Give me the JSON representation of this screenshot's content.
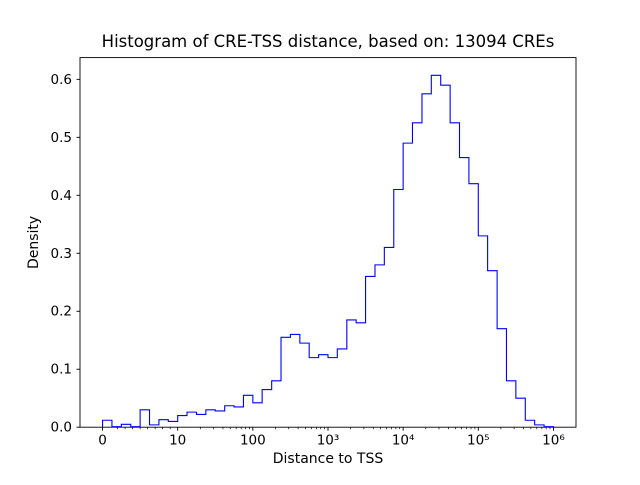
{
  "chart_data": {
    "type": "bar",
    "subtype": "step-histogram",
    "title": "Histogram of CRE-TSS distance, based on: 13094 CREs",
    "xlabel": "Distance to TSS",
    "ylabel": "Density",
    "x_scale": "symlog (linear from 0 to 10, logarithmic from 10 to 1e6)",
    "xlim": [
      0,
      1000000
    ],
    "ylim": [
      0,
      0.6375
    ],
    "grid": false,
    "legend": "none",
    "line_color": "#0000ff",
    "x_tick_values": [
      0,
      10,
      100,
      1000,
      10000,
      100000,
      1000000
    ],
    "x_tick_labels": [
      "0",
      "10",
      "100",
      "10³",
      "10⁴",
      "10⁵",
      "10⁶"
    ],
    "y_tick_values": [
      0.0,
      0.1,
      0.2,
      0.3,
      0.4,
      0.5,
      0.6
    ],
    "y_tick_labels": [
      "0.0",
      "0.1",
      "0.2",
      "0.3",
      "0.4",
      "0.5",
      "0.6"
    ],
    "n_cres": 13094,
    "bin_edges": [
      0,
      1.25,
      2.5,
      3.75,
      5,
      6.25,
      7.5,
      8.75,
      10,
      13.3,
      17.8,
      23.7,
      31.6,
      42.2,
      56.2,
      75,
      100,
      133,
      178,
      237,
      316,
      422,
      562,
      750,
      1000,
      1330,
      1780,
      2370,
      3160,
      4220,
      5620,
      7500,
      10000,
      13300,
      17800,
      23700,
      31600,
      42200,
      56200,
      75000,
      100000,
      133000,
      178000,
      237000,
      316000,
      422000,
      562000,
      750000,
      1000000
    ],
    "densities": [
      0.012,
      0.001,
      0.005,
      0.001,
      0.03,
      0.004,
      0.013,
      0.01,
      0.02,
      0.026,
      0.022,
      0.03,
      0.028,
      0.037,
      0.035,
      0.055,
      0.042,
      0.065,
      0.08,
      0.155,
      0.16,
      0.145,
      0.12,
      0.125,
      0.12,
      0.135,
      0.185,
      0.18,
      0.26,
      0.28,
      0.31,
      0.41,
      0.49,
      0.525,
      0.575,
      0.607,
      0.59,
      0.525,
      0.465,
      0.42,
      0.33,
      0.27,
      0.17,
      0.08,
      0.05,
      0.012,
      0.004,
      0.001
    ]
  }
}
